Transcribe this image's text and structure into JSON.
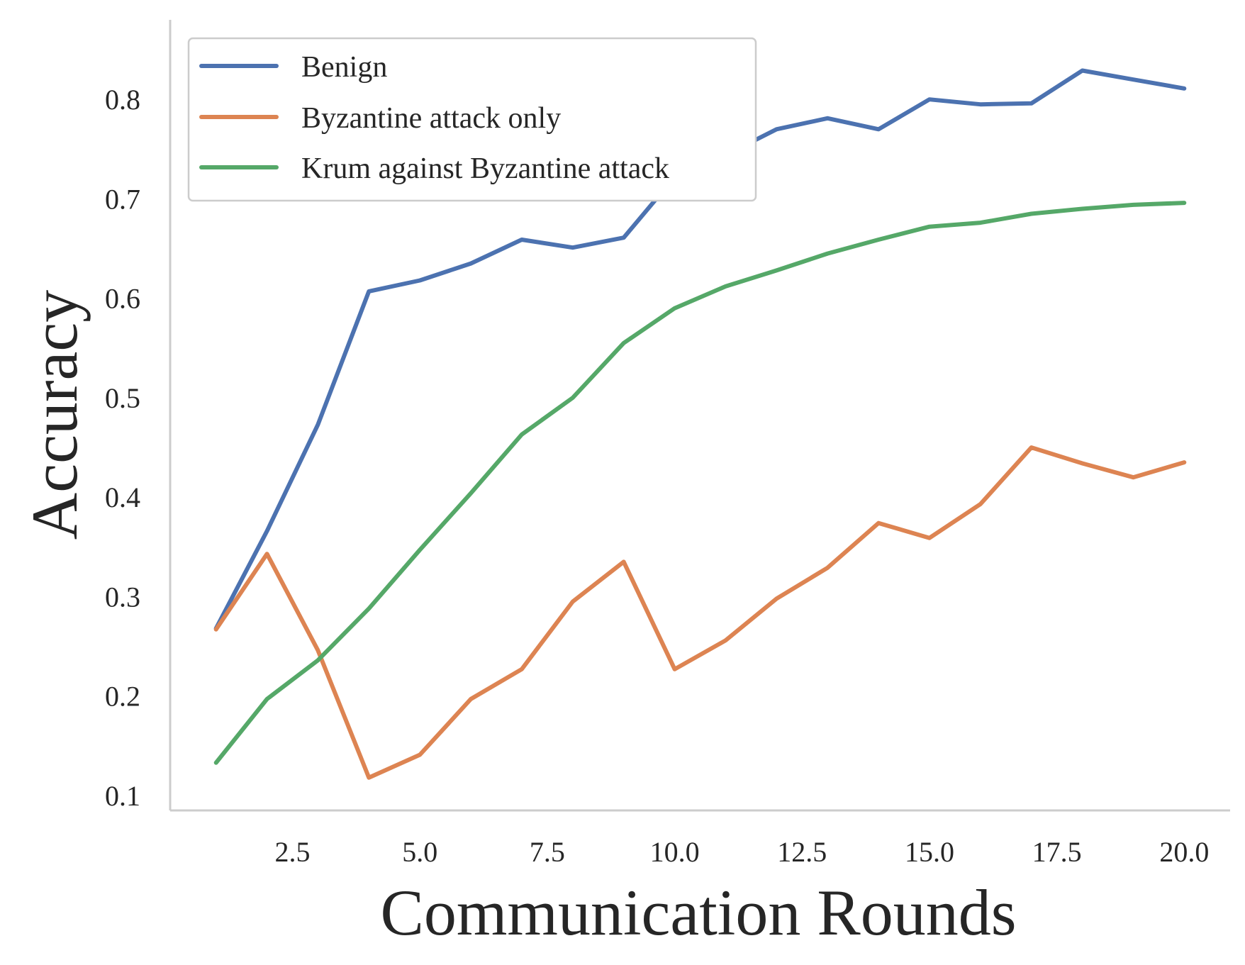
{
  "chart_data": {
    "type": "line",
    "title": "",
    "xlabel": "Communication Rounds",
    "ylabel": "Accuracy",
    "xlim": [
      0.1,
      20.9
    ],
    "ylim": [
      0.085,
      0.88
    ],
    "x_ticks": [
      2.5,
      5.0,
      7.5,
      10.0,
      12.5,
      15.0,
      17.5,
      20.0
    ],
    "x_tick_labels": [
      "2.5",
      "5.0",
      "7.5",
      "10.0",
      "12.5",
      "15.0",
      "17.5",
      "20.0"
    ],
    "y_ticks": [
      0.1,
      0.2,
      0.3,
      0.4,
      0.5,
      0.6,
      0.7,
      0.8
    ],
    "y_tick_labels": [
      "0.1",
      "0.2",
      "0.3",
      "0.4",
      "0.5",
      "0.6",
      "0.7",
      "0.8"
    ],
    "grid": false,
    "legend_position": "top-left",
    "x": [
      1,
      2,
      3,
      4,
      5,
      6,
      7,
      8,
      9,
      10,
      11,
      12,
      13,
      14,
      15,
      16,
      17,
      18,
      19,
      20
    ],
    "series": [
      {
        "name": "Benign",
        "color": "#4C72B0",
        "values": [
          0.268,
          0.366,
          0.473,
          0.607,
          0.618,
          0.635,
          0.659,
          0.651,
          0.661,
          0.722,
          0.744,
          0.77,
          0.781,
          0.77,
          0.8,
          0.795,
          0.796,
          0.829,
          0.82,
          0.811
        ]
      },
      {
        "name": "Byzantine attack only",
        "color": "#DD8452",
        "values": [
          0.267,
          0.343,
          0.246,
          0.118,
          0.141,
          0.197,
          0.227,
          0.295,
          0.335,
          0.227,
          0.256,
          0.298,
          0.329,
          0.374,
          0.359,
          0.393,
          0.45,
          0.434,
          0.42,
          0.435
        ]
      },
      {
        "name": "Krum against Byzantine attack",
        "color": "#55A868",
        "values": [
          0.133,
          0.197,
          0.236,
          0.288,
          0.347,
          0.404,
          0.463,
          0.5,
          0.555,
          0.59,
          0.612,
          0.628,
          0.645,
          0.659,
          0.672,
          0.676,
          0.685,
          0.69,
          0.694,
          0.696
        ]
      }
    ]
  }
}
